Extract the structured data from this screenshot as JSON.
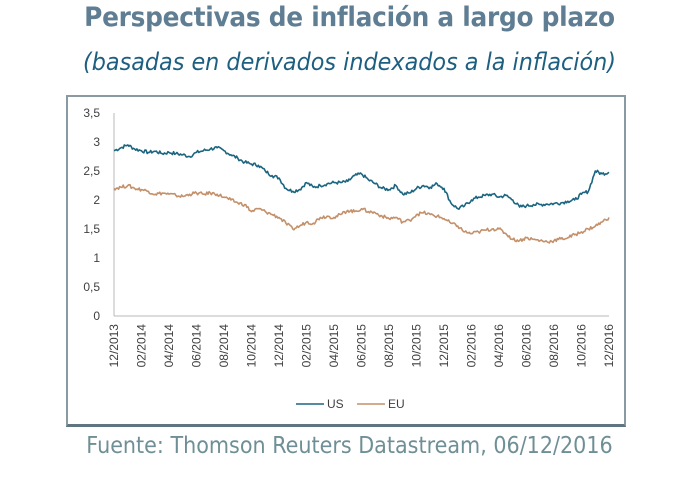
{
  "header": {
    "title": "Perspectivas de inflación a largo plazo",
    "subtitle": "(basadas en derivados indexados a la inflación)"
  },
  "footer": {
    "source": "Fuente: Thomson Reuters Datastream, 06/12/2016"
  },
  "chart_data": {
    "type": "line",
    "title": "Perspectivas de inflación a largo plazo",
    "subtitle": "(basadas en derivados indexados a la inflación)",
    "xlabel": "",
    "ylabel": "",
    "ylim": [
      0,
      3.5
    ],
    "yticks": [
      0,
      0.5,
      1,
      1.5,
      2,
      2.5,
      3,
      3.5
    ],
    "ytick_labels": [
      "0",
      "0,5",
      "1",
      "1,5",
      "2",
      "2,5",
      "3",
      "3,5"
    ],
    "xtick_labels": [
      "12/2013",
      "02/2014",
      "04/2014",
      "06/2014",
      "08/2014",
      "10/2014",
      "12/2014",
      "02/2015",
      "04/2015",
      "06/2015",
      "08/2015",
      "10/2015",
      "12/2015",
      "02/2016",
      "04/2016",
      "06/2016",
      "08/2016",
      "10/2016",
      "12/2016"
    ],
    "x_range_months": [
      0,
      36
    ],
    "grid": false,
    "legend": {
      "position": "bottom",
      "entries": [
        "US",
        "EU"
      ]
    },
    "series": [
      {
        "name": "US",
        "color": "#1b6580",
        "x_months": [
          0,
          0.5,
          1,
          1.5,
          2,
          2.5,
          3,
          3.5,
          4,
          4.5,
          5,
          5.5,
          6,
          6.5,
          7,
          7.5,
          8,
          8.5,
          9,
          9.5,
          10,
          10.5,
          11,
          11.5,
          12,
          12.5,
          13,
          13.5,
          14,
          14.5,
          15,
          15.5,
          16,
          16.5,
          17,
          17.5,
          18,
          18.5,
          19,
          19.5,
          20,
          20.5,
          21,
          21.5,
          22,
          22.5,
          23,
          23.5,
          24,
          24.5,
          25,
          25.5,
          26,
          26.5,
          27,
          27.5,
          28,
          28.5,
          29,
          29.5,
          30,
          30.5,
          31,
          31.5,
          32,
          32.5,
          33,
          33.5,
          34,
          34.5,
          35,
          35.5,
          36
        ],
        "values": [
          2.85,
          2.9,
          2.95,
          2.88,
          2.85,
          2.82,
          2.84,
          2.8,
          2.82,
          2.8,
          2.78,
          2.75,
          2.82,
          2.85,
          2.88,
          2.9,
          2.85,
          2.78,
          2.72,
          2.65,
          2.62,
          2.6,
          2.5,
          2.42,
          2.38,
          2.2,
          2.15,
          2.18,
          2.3,
          2.22,
          2.25,
          2.28,
          2.3,
          2.3,
          2.32,
          2.42,
          2.45,
          2.35,
          2.28,
          2.2,
          2.18,
          2.25,
          2.1,
          2.12,
          2.2,
          2.25,
          2.22,
          2.28,
          2.2,
          1.95,
          1.85,
          1.9,
          2.0,
          2.05,
          2.08,
          2.1,
          2.05,
          2.08,
          2.0,
          1.88,
          1.9,
          1.92,
          1.92,
          1.93,
          1.94,
          1.95,
          1.98,
          2.0,
          2.1,
          2.15,
          2.5,
          2.45,
          2.48
        ]
      },
      {
        "name": "EU",
        "color": "#c4906a",
        "x_months": [
          0,
          0.5,
          1,
          1.5,
          2,
          2.5,
          3,
          3.5,
          4,
          4.5,
          5,
          5.5,
          6,
          6.5,
          7,
          7.5,
          8,
          8.5,
          9,
          9.5,
          10,
          10.5,
          11,
          11.5,
          12,
          12.5,
          13,
          13.5,
          14,
          14.5,
          15,
          15.5,
          16,
          16.5,
          17,
          17.5,
          18,
          18.5,
          19,
          19.5,
          20,
          20.5,
          21,
          21.5,
          22,
          22.5,
          23,
          23.5,
          24,
          24.5,
          25,
          25.5,
          26,
          26.5,
          27,
          27.5,
          28,
          28.5,
          29,
          29.5,
          30,
          30.5,
          31,
          31.5,
          32,
          32.5,
          33,
          33.5,
          34,
          34.5,
          35,
          35.5,
          36
        ],
        "values": [
          2.2,
          2.22,
          2.25,
          2.2,
          2.18,
          2.15,
          2.1,
          2.12,
          2.1,
          2.08,
          2.06,
          2.1,
          2.12,
          2.1,
          2.12,
          2.1,
          2.05,
          2.0,
          1.95,
          1.92,
          1.8,
          1.85,
          1.8,
          1.75,
          1.7,
          1.6,
          1.5,
          1.55,
          1.62,
          1.6,
          1.7,
          1.72,
          1.7,
          1.75,
          1.82,
          1.8,
          1.85,
          1.8,
          1.78,
          1.72,
          1.68,
          1.7,
          1.62,
          1.65,
          1.75,
          1.78,
          1.75,
          1.72,
          1.68,
          1.6,
          1.55,
          1.45,
          1.42,
          1.45,
          1.48,
          1.5,
          1.5,
          1.42,
          1.32,
          1.3,
          1.35,
          1.32,
          1.3,
          1.28,
          1.3,
          1.33,
          1.35,
          1.4,
          1.45,
          1.5,
          1.55,
          1.62,
          1.7
        ]
      }
    ]
  }
}
